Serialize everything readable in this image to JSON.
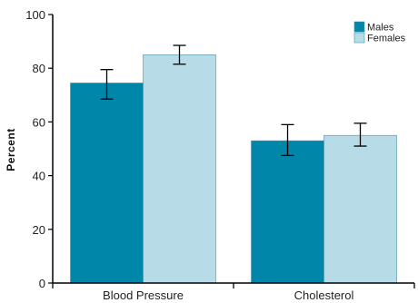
{
  "chart_data": {
    "type": "bar",
    "title": "",
    "xlabel": "",
    "ylabel": "Percent",
    "ylim": [
      0,
      100
    ],
    "yticks": [
      0,
      20,
      40,
      60,
      80,
      100
    ],
    "categories": [
      "Blood Pressure",
      "Cholesterol"
    ],
    "series": [
      {
        "name": "Males",
        "color": "#0086a8",
        "values": [
          74.5,
          53
        ],
        "err_low": [
          68.5,
          47.5
        ],
        "err_high": [
          79.5,
          59
        ]
      },
      {
        "name": "Females",
        "color": "#b7dce8",
        "values": [
          85,
          55
        ],
        "err_low": [
          81.5,
          51
        ],
        "err_high": [
          88.5,
          59.5
        ]
      }
    ],
    "legend_position": "top-right",
    "grid": false
  }
}
